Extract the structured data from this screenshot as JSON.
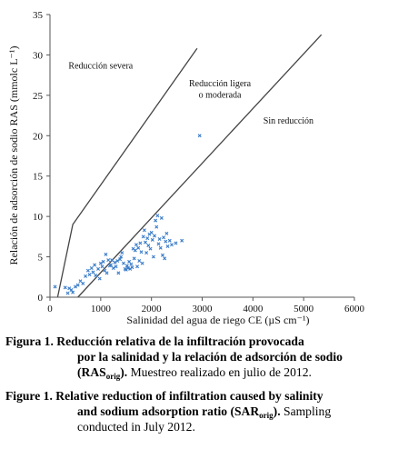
{
  "chart_data": {
    "type": "scatter",
    "xlabel": "Salinidad del agua de riego CE (µS cm⁻¹)",
    "ylabel": "Relación de adsorción de sodio RAS (mmolc L⁻¹)",
    "xlim": [
      0,
      6000
    ],
    "ylim": [
      0,
      35
    ],
    "xticks": [
      "0",
      "1000",
      "2000",
      "3000",
      "4000",
      "5000",
      "6000"
    ],
    "yticks": [
      "0",
      "5",
      "10",
      "15",
      "20",
      "25",
      "30",
      "35"
    ],
    "grid": false,
    "marker_color": "#3a7cc8",
    "line_color": "#444444",
    "boundary_lines": [
      {
        "name": "severa-ligera",
        "points": [
          [
            150,
            0
          ],
          [
            450,
            9
          ],
          [
            2900,
            30.8
          ]
        ]
      },
      {
        "name": "ligera-sin",
        "points": [
          [
            550,
            0
          ],
          [
            5350,
            32.5
          ]
        ]
      }
    ],
    "region_labels": [
      {
        "text": "Reducción severa",
        "x": 1000,
        "y": 28.3
      },
      {
        "text": "Reducción ligera",
        "x": 3350,
        "y": 26.1
      },
      {
        "text": "o moderada",
        "x": 3350,
        "y": 24.7
      },
      {
        "text": "Sin reducción",
        "x": 4700,
        "y": 21.5
      }
    ],
    "points": [
      [
        100,
        1.3
      ],
      [
        300,
        1.2
      ],
      [
        350,
        0.5
      ],
      [
        380,
        1.1
      ],
      [
        420,
        0.9
      ],
      [
        450,
        0.6
      ],
      [
        500,
        1.3
      ],
      [
        550,
        1.5
      ],
      [
        600,
        2.0
      ],
      [
        650,
        1.7
      ],
      [
        700,
        2.6
      ],
      [
        750,
        3.3
      ],
      [
        780,
        2.8
      ],
      [
        820,
        3.6
      ],
      [
        850,
        3.1
      ],
      [
        880,
        4.0
      ],
      [
        900,
        2.7
      ],
      [
        950,
        3.5
      ],
      [
        980,
        2.3
      ],
      [
        1000,
        4.2
      ],
      [
        1030,
        3.8
      ],
      [
        1050,
        4.4
      ],
      [
        1080,
        3.3
      ],
      [
        1100,
        5.3
      ],
      [
        1120,
        3.0
      ],
      [
        1150,
        4.6
      ],
      [
        1180,
        3.9
      ],
      [
        1200,
        4.0
      ],
      [
        1220,
        4.6
      ],
      [
        1250,
        3.6
      ],
      [
        1280,
        4.3
      ],
      [
        1300,
        3.8
      ],
      [
        1330,
        4.5
      ],
      [
        1350,
        3.0
      ],
      [
        1380,
        4.7
      ],
      [
        1400,
        5.0
      ],
      [
        1420,
        5.5
      ],
      [
        1450,
        4.2
      ],
      [
        1480,
        3.5
      ],
      [
        1500,
        3.4
      ],
      [
        1520,
        3.9
      ],
      [
        1540,
        3.6
      ],
      [
        1560,
        4.4
      ],
      [
        1580,
        3.5
      ],
      [
        1600,
        4.1
      ],
      [
        1620,
        3.7
      ],
      [
        1640,
        6.0
      ],
      [
        1660,
        4.8
      ],
      [
        1680,
        5.8
      ],
      [
        1700,
        6.5
      ],
      [
        1720,
        3.8
      ],
      [
        1740,
        6.1
      ],
      [
        1760,
        4.5
      ],
      [
        1780,
        6.7
      ],
      [
        1800,
        5.6
      ],
      [
        1820,
        4.2
      ],
      [
        1840,
        7.5
      ],
      [
        1860,
        8.3
      ],
      [
        1880,
        6.8
      ],
      [
        1900,
        5.5
      ],
      [
        1920,
        7.3
      ],
      [
        1940,
        6.4
      ],
      [
        1960,
        7.8
      ],
      [
        1980,
        6.0
      ],
      [
        2000,
        8.0
      ],
      [
        2020,
        7.1
      ],
      [
        2040,
        5.0
      ],
      [
        2060,
        7.6
      ],
      [
        2080,
        9.5
      ],
      [
        2100,
        8.7
      ],
      [
        2120,
        10.1
      ],
      [
        2140,
        6.6
      ],
      [
        2160,
        7.2
      ],
      [
        2180,
        6.1
      ],
      [
        2200,
        9.8
      ],
      [
        2220,
        5.2
      ],
      [
        2240,
        7.4
      ],
      [
        2260,
        4.8
      ],
      [
        2280,
        6.9
      ],
      [
        2300,
        7.9
      ],
      [
        2320,
        6.3
      ],
      [
        2360,
        7.0
      ],
      [
        2400,
        6.5
      ],
      [
        2480,
        6.7
      ],
      [
        2600,
        7.0
      ],
      [
        2950,
        20.0
      ]
    ]
  },
  "caption": {
    "es_label": "Figura 1.",
    "es_line1": "Reducción relativa de la infiltración provocada",
    "es_line2": "por la salinidad y la relación de adsorción de sodio",
    "es_abbr": "(RAS",
    "es_abbr_sub": "orig",
    "es_abbr_close": ").",
    "es_tail": " Muestreo realizado en julio de 2012.",
    "en_label": "Figure 1.",
    "en_line1": "Relative reduction of infiltration caused by salinity",
    "en_line2a": "and sodium adsorption ratio (SAR",
    "en_line2_sub": "orig",
    "en_line2b": ").",
    "en_line2c": " Sampling",
    "en_line3": "conducted in July 2012."
  }
}
